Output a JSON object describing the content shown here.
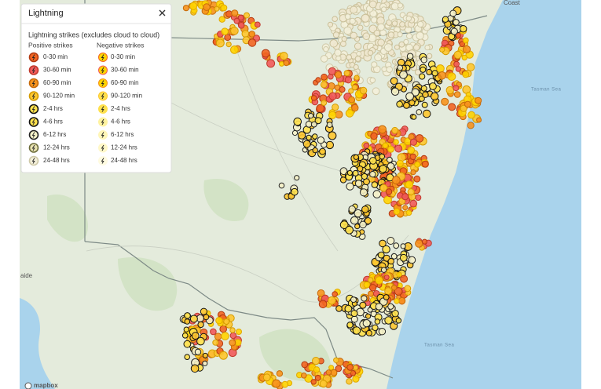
{
  "legend_panel": {
    "title": "Lightning",
    "subtitle": "Lightning strikes (excludes cloud to cloud)",
    "columns": [
      {
        "heading": "Positive strikes",
        "items": [
          "0-30 min",
          "30-60 min",
          "60-90 min",
          "90-120 min",
          "2-4 hrs",
          "4-6 hrs",
          "6-12 hrs",
          "12-24 hrs",
          "24-48 hrs"
        ]
      },
      {
        "heading": "Negative strikes",
        "items": [
          "0-30 min",
          "30-60 min",
          "60-90 min",
          "90-120 min",
          "2-4 hrs",
          "4-6 hrs",
          "6-12 hrs",
          "12-24 hrs",
          "24-48 hrs"
        ]
      }
    ]
  },
  "map_labels": [
    "Coast",
    "aide",
    "Tasman Sea",
    "Tasman Sea"
  ],
  "attribution": "mapbox"
}
